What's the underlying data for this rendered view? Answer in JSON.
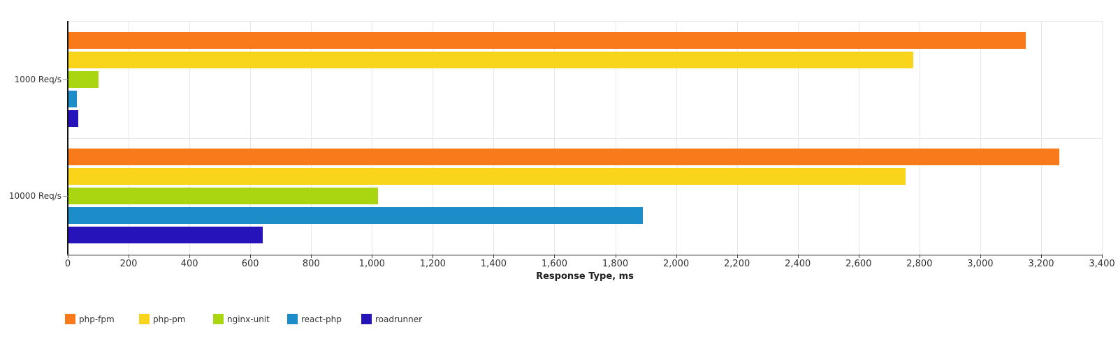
{
  "chart_data": {
    "type": "bar",
    "orientation": "horizontal",
    "title": "",
    "xlabel": "Response Type, ms",
    "ylabel": "",
    "categories": [
      "1000 Req/s",
      "10000 Req/s"
    ],
    "series": [
      {
        "name": "php-fpm",
        "color": "#F87A1B",
        "values": [
          3150,
          3260
        ]
      },
      {
        "name": "php-pm",
        "color": "#F8D51A",
        "values": [
          2780,
          2755
        ]
      },
      {
        "name": "nginx-unit",
        "color": "#A9D511",
        "values": [
          100,
          1020
        ]
      },
      {
        "name": "react-php",
        "color": "#1C8DC9",
        "values": [
          30,
          1890
        ]
      },
      {
        "name": "roadrunner",
        "color": "#2713BA",
        "values": [
          35,
          640
        ]
      }
    ],
    "xlim": [
      0,
      3400
    ],
    "x_tick_step": 200,
    "x_tick_labels": [
      "0",
      "200",
      "400",
      "600",
      "800",
      "1,000",
      "1,200",
      "1,400",
      "1,600",
      "1,800",
      "2,000",
      "2,200",
      "2,400",
      "2,600",
      "2,800",
      "3,000",
      "3,200",
      "3,400"
    ],
    "grid": true,
    "legend_position": "bottom-left"
  }
}
